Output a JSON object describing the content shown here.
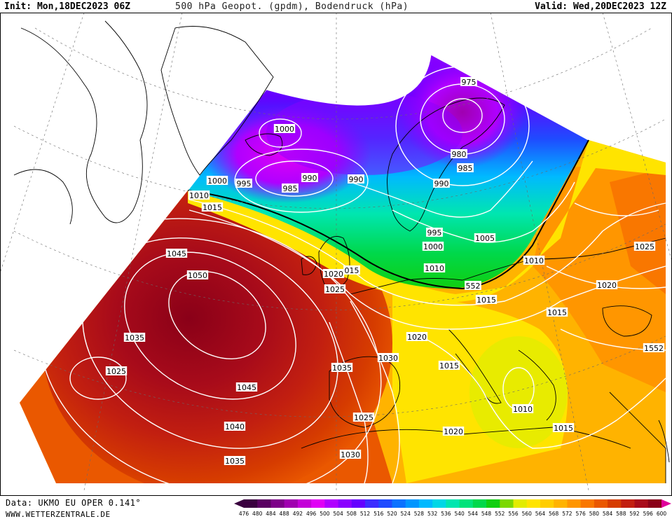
{
  "header": {
    "init": "Init: Mon,18DEC2023 06Z",
    "title": "500 hPa Geopot. (gpdm), Bodendruck (hPa)",
    "valid": "Valid: Wed,20DEC2023 12Z"
  },
  "footer": {
    "data_source": "Data: UKMO EU OPER 0.141°",
    "website": "WWW.WETTERZENTRALE.DE"
  },
  "colorbar": {
    "ticks": [
      "476",
      "480",
      "484",
      "488",
      "492",
      "496",
      "500",
      "504",
      "508",
      "512",
      "516",
      "520",
      "524",
      "528",
      "532",
      "536",
      "540",
      "544",
      "548",
      "552",
      "556",
      "560",
      "564",
      "568",
      "572",
      "576",
      "580",
      "584",
      "588",
      "592",
      "596",
      "600"
    ],
    "colors": [
      "#3a003f",
      "#5a0062",
      "#7d0089",
      "#a000b0",
      "#c300d8",
      "#e000f5",
      "#b000ff",
      "#8a00ff",
      "#6400ff",
      "#3c2dff",
      "#1f4bff",
      "#0b72ff",
      "#0096ff",
      "#00b9ff",
      "#00d7e6",
      "#00e6b0",
      "#00e37a",
      "#00d84a",
      "#10cf10",
      "#7cd800",
      "#e2ec00",
      "#ffe400",
      "#ffcd00",
      "#ffb300",
      "#ff9600",
      "#f97700",
      "#ea5800",
      "#d63c00",
      "#c21f10",
      "#a80b1a",
      "#8a0018",
      "#e0009a"
    ]
  },
  "pressure_labels": [
    "975",
    "980",
    "985",
    "990",
    "990",
    "990",
    "985",
    "995",
    "1000",
    "1000",
    "995",
    "1000",
    "1005",
    "1010",
    "1010",
    "552",
    "1015",
    "1045",
    "1050",
    "1035",
    "1025",
    "1020",
    "015",
    "1025",
    "1015",
    "1020",
    "1035",
    "1030",
    "1015",
    "1045",
    "1040",
    "1025",
    "1030",
    "1020",
    "1010",
    "1015",
    "1035",
    "1025",
    "1020",
    "1010",
    "1015",
    "1552"
  ],
  "legend_bounds": [
    "476",
    "600"
  ]
}
